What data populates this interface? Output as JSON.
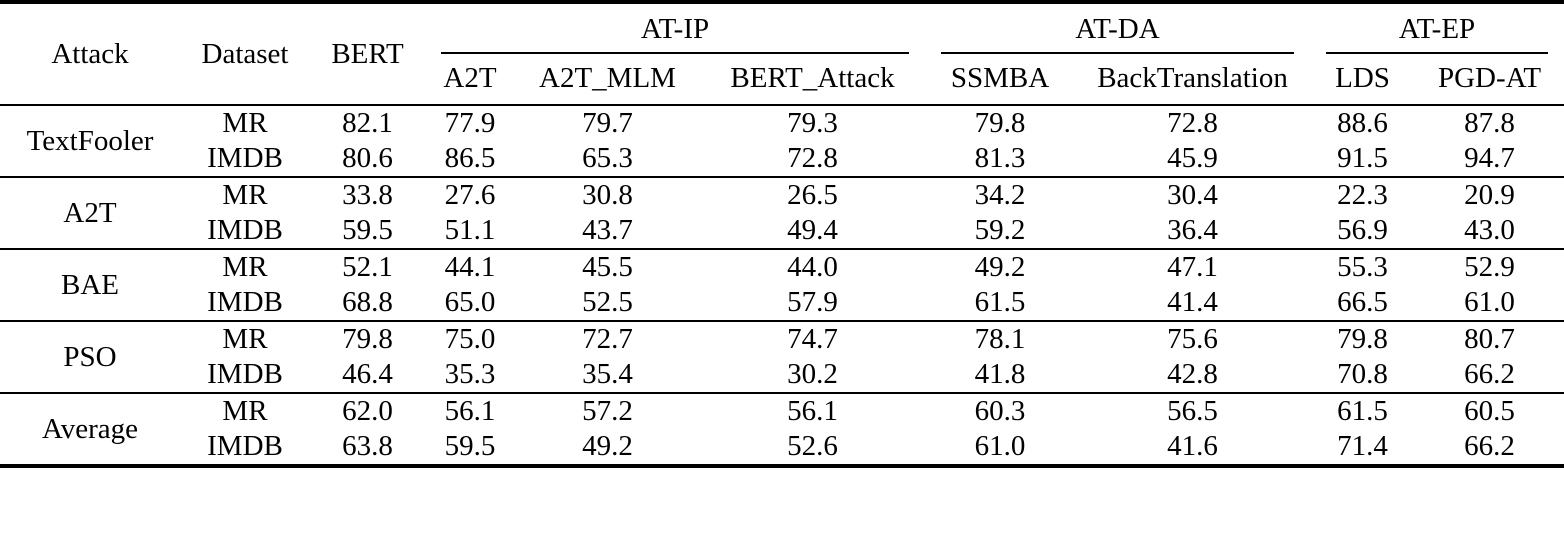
{
  "colors": {
    "text": "#000000",
    "background": "#ffffff",
    "rule": "#000000"
  },
  "table": {
    "headers": {
      "attack": "Attack",
      "dataset": "Dataset",
      "bert": "BERT",
      "groups": [
        {
          "label": "AT-IP",
          "cols": [
            "A2T",
            "A2T_MLM",
            "BERT_Attack"
          ]
        },
        {
          "label": "AT-DA",
          "cols": [
            "SSMBA",
            "BackTranslation"
          ]
        },
        {
          "label": "AT-EP",
          "cols": [
            "LDS",
            "PGD-AT"
          ]
        }
      ]
    },
    "value_columns": [
      "BERT",
      "A2T",
      "A2T_MLM",
      "BERT_Attack",
      "SSMBA",
      "BackTranslation",
      "LDS",
      "PGD-AT"
    ],
    "rows": [
      {
        "attack": "TextFooler",
        "attack_bold": false,
        "sub": [
          {
            "dataset": "MR",
            "values": [
              "82.1",
              "77.9",
              "79.7",
              "79.3",
              "79.8",
              "72.8",
              "88.6",
              "87.8"
            ],
            "bold": [
              5
            ]
          },
          {
            "dataset": "IMDB",
            "values": [
              "80.6",
              "86.5",
              "65.3",
              "72.8",
              "81.3",
              "45.9",
              "91.5",
              "94.7"
            ],
            "bold": [
              5
            ]
          }
        ]
      },
      {
        "attack": "A2T",
        "attack_bold": false,
        "sub": [
          {
            "dataset": "MR",
            "values": [
              "33.8",
              "27.6",
              "30.8",
              "26.5",
              "34.2",
              "30.4",
              "22.3",
              "20.9"
            ],
            "bold": [
              7
            ]
          },
          {
            "dataset": "IMDB",
            "values": [
              "59.5",
              "51.1",
              "43.7",
              "49.4",
              "59.2",
              "36.4",
              "56.9",
              "43.0"
            ],
            "bold": [
              5
            ]
          }
        ]
      },
      {
        "attack": "BAE",
        "attack_bold": false,
        "sub": [
          {
            "dataset": "MR",
            "values": [
              "52.1",
              "44.1",
              "45.5",
              "44.0",
              "49.2",
              "47.1",
              "55.3",
              "52.9"
            ],
            "bold": [
              3
            ]
          },
          {
            "dataset": "IMDB",
            "values": [
              "68.8",
              "65.0",
              "52.5",
              "57.9",
              "61.5",
              "41.4",
              "66.5",
              "61.0"
            ],
            "bold": [
              5
            ]
          }
        ]
      },
      {
        "attack": "PSO",
        "attack_bold": false,
        "sub": [
          {
            "dataset": "MR",
            "values": [
              "79.8",
              "75.0",
              "72.7",
              "74.7",
              "78.1",
              "75.6",
              "79.8",
              "80.7"
            ],
            "bold": [
              2
            ]
          },
          {
            "dataset": "IMDB",
            "values": [
              "46.4",
              "35.3",
              "35.4",
              "30.2",
              "41.8",
              "42.8",
              "70.8",
              "66.2"
            ],
            "bold": [
              3
            ]
          }
        ]
      },
      {
        "attack": "Average",
        "attack_bold": true,
        "sub": [
          {
            "dataset": "MR",
            "values": [
              "62.0",
              "56.1",
              "57.2",
              "56.1",
              "60.3",
              "56.5",
              "61.5",
              "60.5"
            ],
            "bold": [
              1,
              3
            ]
          },
          {
            "dataset": "IMDB",
            "values": [
              "63.8",
              "59.5",
              "49.2",
              "52.6",
              "61.0",
              "41.6",
              "71.4",
              "66.2"
            ],
            "bold": [
              5
            ]
          }
        ]
      }
    ]
  }
}
